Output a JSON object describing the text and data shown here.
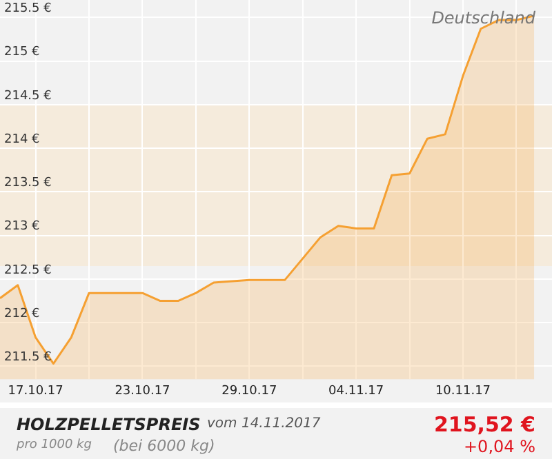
{
  "chart_data": {
    "type": "area",
    "title": "HOLZPELLETSPREIS",
    "subtitle": "vom 14.11.2017",
    "annotations": [
      "Deutschland",
      "pro 1000 kg",
      "(bei 6000 kg)",
      "215,52 €",
      "+0,04 %"
    ],
    "x": [
      "2017-10-15",
      "2017-10-16",
      "2017-10-17",
      "2017-10-18",
      "2017-10-19",
      "2017-10-20",
      "2017-10-23",
      "2017-10-24",
      "2017-10-25",
      "2017-10-26",
      "2017-10-27",
      "2017-10-29",
      "2017-10-31",
      "2017-11-02",
      "2017-11-03",
      "2017-11-04",
      "2017-11-05",
      "2017-11-06",
      "2017-11-07",
      "2017-11-08",
      "2017-11-09",
      "2017-11-10",
      "2017-11-11",
      "2017-11-12",
      "2017-11-13",
      "2017-11-14"
    ],
    "series": [
      {
        "color": "#f5a032",
        "values": [
          212.28,
          212.43,
          211.83,
          211.53,
          211.83,
          212.34,
          212.34,
          212.25,
          212.25,
          212.34,
          212.46,
          212.49,
          212.49,
          212.98,
          213.11,
          213.08,
          213.08,
          213.69,
          213.71,
          214.11,
          214.16,
          214.83,
          215.37,
          215.47,
          215.47,
          215.52
        ]
      }
    ],
    "xlim": [
      "2017-10-15",
      "2017-11-15"
    ],
    "xticks": [
      {
        "value": "2017-10-17",
        "label": "17.10.17"
      },
      {
        "value": "2017-10-20",
        "label": null
      },
      {
        "value": "2017-10-23",
        "label": "23.10.17"
      },
      {
        "value": "2017-10-26",
        "label": null
      },
      {
        "value": "2017-10-29",
        "label": "29.10.17"
      },
      {
        "value": "2017-11-01",
        "label": null
      },
      {
        "value": "2017-11-04",
        "label": "04.11.17"
      },
      {
        "value": "2017-11-07",
        "label": null
      },
      {
        "value": "2017-11-10",
        "label": "10.11.17"
      },
      {
        "value": "2017-11-13",
        "label": null
      }
    ],
    "ylim": [
      211.35,
      215.7
    ],
    "yticks": [
      {
        "value": 211.5,
        "label": "211.5 €"
      },
      {
        "value": 212,
        "label": "212 €"
      },
      {
        "value": 212.5,
        "label": "212.5 €"
      },
      {
        "value": 213,
        "label": "213 €"
      },
      {
        "value": 213.5,
        "label": "213.5 €"
      },
      {
        "value": 214,
        "label": "214 €"
      },
      {
        "value": 214.5,
        "label": "214.5 €"
      },
      {
        "value": 215,
        "label": "215 €"
      },
      {
        "value": 215.5,
        "label": "215.5 €"
      }
    ],
    "bands": [
      {
        "axis": "y",
        "from": 212.65,
        "to": 214.5,
        "color": "#f5ebdc"
      }
    ],
    "grid": true,
    "legend": false,
    "marker": "none",
    "line_style": "solid"
  }
}
